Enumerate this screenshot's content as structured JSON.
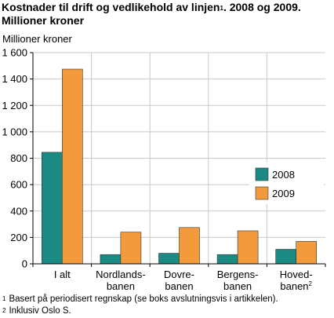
{
  "title": {
    "main": "Kostnader til drift og vedlikehold av linjen",
    "ref": "1",
    "suffix": ". 2008 og 2009.",
    "line2": "Millioner kroner"
  },
  "chart_data": {
    "type": "bar",
    "ylabel": "Millioner kroner",
    "ylim": [
      0,
      1600
    ],
    "yticks": [
      "0",
      "200",
      "400",
      "600",
      "800",
      "1 000",
      "1 200",
      "1 400",
      "1 600"
    ],
    "categories": [
      {
        "line1": "I alt",
        "line2": "",
        "sup": ""
      },
      {
        "line1": "Nordlands-",
        "line2": "banen",
        "sup": ""
      },
      {
        "line1": "Dovre-",
        "line2": "banen",
        "sup": ""
      },
      {
        "line1": "Bergens-",
        "line2": "banen",
        "sup": ""
      },
      {
        "line1": "Hoved-",
        "line2": "banen",
        "sup": "2"
      }
    ],
    "series": [
      {
        "name": "2008",
        "color": "#1a8a83",
        "values": [
          845,
          70,
          80,
          70,
          110
        ]
      },
      {
        "name": "2009",
        "color": "#f39b3c",
        "values": [
          1475,
          240,
          275,
          250,
          170
        ]
      }
    ],
    "grid": true,
    "legend_position": "inside-right"
  },
  "footnotes": [
    {
      "mark": "1",
      "text": "Basert på periodisert regnskap  (se boks avslutningsvis i artikkelen)."
    },
    {
      "mark": "2",
      "text": "Inklusiv Oslo S."
    }
  ]
}
